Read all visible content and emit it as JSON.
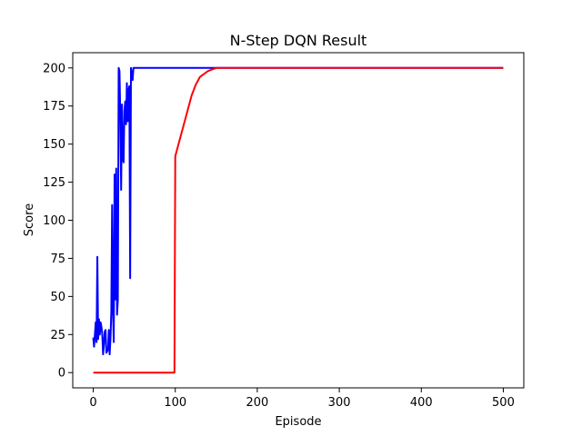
{
  "chart_data": {
    "type": "line",
    "title": "N-Step DQN Result",
    "xlabel": "Episode",
    "ylabel": "Score",
    "xlim": [
      -25,
      525
    ],
    "ylim": [
      -10,
      210
    ],
    "xticks": [
      0,
      100,
      200,
      300,
      400,
      500
    ],
    "yticks": [
      0,
      25,
      50,
      75,
      100,
      125,
      150,
      175,
      200
    ],
    "grid": false,
    "legend": "none",
    "series": [
      {
        "color": "#0000ff",
        "x": [
          0,
          1,
          2,
          3,
          4,
          5,
          6,
          7,
          8,
          9,
          10,
          11,
          12,
          13,
          14,
          15,
          16,
          17,
          18,
          19,
          20,
          21,
          22,
          23,
          24,
          25,
          26,
          27,
          28,
          29,
          30,
          31,
          32,
          33,
          34,
          35,
          36,
          37,
          38,
          39,
          40,
          41,
          42,
          43,
          44,
          45,
          46,
          47,
          48,
          49,
          50,
          55,
          60,
          80,
          100,
          150,
          200,
          300,
          400,
          500
        ],
        "y": [
          23,
          17,
          25,
          33,
          20,
          76,
          22,
          35,
          25,
          33,
          30,
          25,
          12,
          18,
          27,
          28,
          13,
          14,
          15,
          28,
          12,
          22,
          40,
          110,
          42,
          20,
          130,
          48,
          134,
          38,
          48,
          200,
          198,
          168,
          120,
          176,
          140,
          138,
          172,
          178,
          163,
          190,
          165,
          185,
          188,
          62,
          200,
          196,
          192,
          200,
          200,
          200,
          200,
          200,
          200,
          200,
          200,
          200,
          200,
          200
        ]
      },
      {
        "color": "#ff0000",
        "x": [
          0,
          97,
          98,
          99,
          100,
          105,
          110,
          115,
          120,
          125,
          130,
          135,
          140,
          145,
          150,
          500
        ],
        "y": [
          0,
          0,
          0,
          0,
          142,
          152,
          162,
          172,
          182,
          189,
          194,
          196,
          198,
          199,
          200,
          200
        ]
      }
    ]
  }
}
